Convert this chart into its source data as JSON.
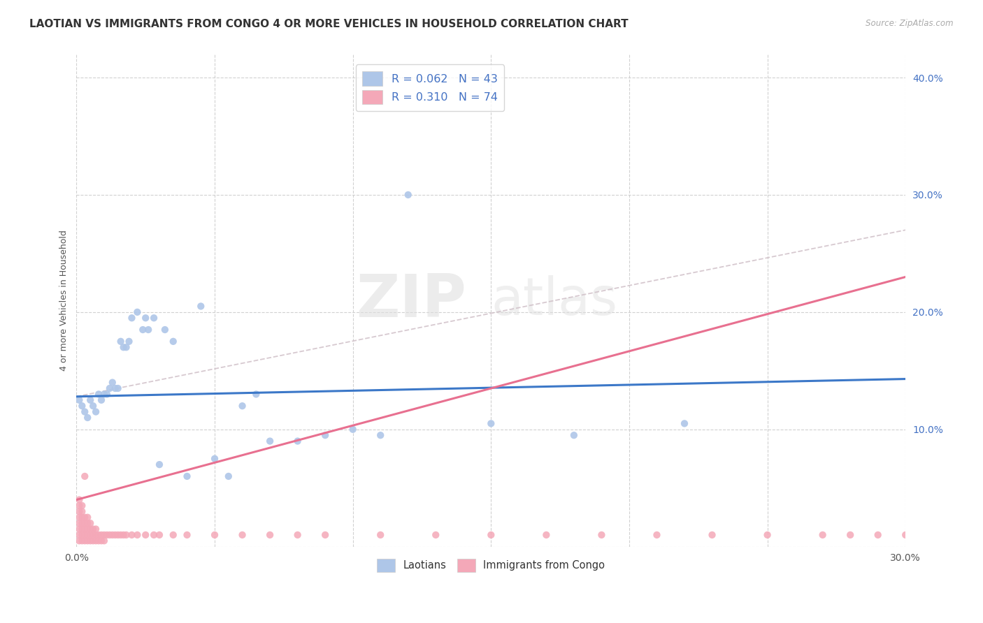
{
  "title": "LAOTIAN VS IMMIGRANTS FROM CONGO 4 OR MORE VEHICLES IN HOUSEHOLD CORRELATION CHART",
  "source": "Source: ZipAtlas.com",
  "ylabel": "4 or more Vehicles in Household",
  "xlim": [
    0.0,
    0.3
  ],
  "ylim": [
    0.0,
    0.42
  ],
  "xtick_positions": [
    0.0,
    0.05,
    0.1,
    0.15,
    0.2,
    0.25,
    0.3
  ],
  "xtick_labels": [
    "0.0%",
    "",
    "",
    "",
    "",
    "",
    "30.0%"
  ],
  "ytick_positions": [
    0.0,
    0.1,
    0.2,
    0.3,
    0.4
  ],
  "ytick_labels": [
    "",
    "10.0%",
    "20.0%",
    "30.0%",
    "40.0%"
  ],
  "laotian_R": 0.062,
  "laotian_N": 43,
  "congo_R": 0.31,
  "congo_N": 74,
  "laotian_color": "#aec6e8",
  "congo_color": "#f4a8b8",
  "laotian_line_color": "#3c78c8",
  "congo_line_color": "#e87090",
  "trend_line_color": "#d0c0c8",
  "background_color": "#ffffff",
  "watermark_zip": "ZIP",
  "watermark_atlas": "atlas",
  "laotian_scatter_x": [
    0.001,
    0.002,
    0.003,
    0.004,
    0.005,
    0.006,
    0.007,
    0.008,
    0.009,
    0.01,
    0.011,
    0.012,
    0.013,
    0.014,
    0.015,
    0.016,
    0.017,
    0.018,
    0.019,
    0.02,
    0.022,
    0.024,
    0.025,
    0.026,
    0.028,
    0.03,
    0.032,
    0.035,
    0.04,
    0.045,
    0.05,
    0.055,
    0.06,
    0.065,
    0.07,
    0.08,
    0.09,
    0.1,
    0.11,
    0.12,
    0.15,
    0.18,
    0.22
  ],
  "laotian_scatter_y": [
    0.125,
    0.12,
    0.115,
    0.11,
    0.125,
    0.12,
    0.115,
    0.13,
    0.125,
    0.13,
    0.13,
    0.135,
    0.14,
    0.135,
    0.135,
    0.175,
    0.17,
    0.17,
    0.175,
    0.195,
    0.2,
    0.185,
    0.195,
    0.185,
    0.195,
    0.07,
    0.185,
    0.175,
    0.06,
    0.205,
    0.075,
    0.06,
    0.12,
    0.13,
    0.09,
    0.09,
    0.095,
    0.1,
    0.095,
    0.3,
    0.105,
    0.095,
    0.105
  ],
  "congo_scatter_x": [
    0.001,
    0.001,
    0.001,
    0.001,
    0.001,
    0.001,
    0.001,
    0.001,
    0.002,
    0.002,
    0.002,
    0.002,
    0.002,
    0.002,
    0.002,
    0.003,
    0.003,
    0.003,
    0.003,
    0.003,
    0.003,
    0.004,
    0.004,
    0.004,
    0.004,
    0.004,
    0.005,
    0.005,
    0.005,
    0.005,
    0.006,
    0.006,
    0.006,
    0.007,
    0.007,
    0.007,
    0.008,
    0.008,
    0.009,
    0.009,
    0.01,
    0.01,
    0.011,
    0.012,
    0.013,
    0.014,
    0.015,
    0.016,
    0.017,
    0.018,
    0.02,
    0.022,
    0.025,
    0.028,
    0.03,
    0.035,
    0.04,
    0.05,
    0.06,
    0.07,
    0.08,
    0.09,
    0.11,
    0.13,
    0.15,
    0.17,
    0.19,
    0.21,
    0.23,
    0.25,
    0.27,
    0.28,
    0.29,
    0.3
  ],
  "congo_scatter_y": [
    0.005,
    0.01,
    0.015,
    0.02,
    0.025,
    0.03,
    0.035,
    0.04,
    0.005,
    0.01,
    0.015,
    0.02,
    0.025,
    0.03,
    0.035,
    0.005,
    0.01,
    0.015,
    0.02,
    0.025,
    0.06,
    0.005,
    0.01,
    0.015,
    0.02,
    0.025,
    0.005,
    0.01,
    0.015,
    0.02,
    0.005,
    0.01,
    0.015,
    0.005,
    0.01,
    0.015,
    0.005,
    0.01,
    0.005,
    0.01,
    0.005,
    0.01,
    0.01,
    0.01,
    0.01,
    0.01,
    0.01,
    0.01,
    0.01,
    0.01,
    0.01,
    0.01,
    0.01,
    0.01,
    0.01,
    0.01,
    0.01,
    0.01,
    0.01,
    0.01,
    0.01,
    0.01,
    0.01,
    0.01,
    0.01,
    0.01,
    0.01,
    0.01,
    0.01,
    0.01,
    0.01,
    0.01,
    0.01,
    0.01
  ],
  "lao_trend_x0": 0.0,
  "lao_trend_y0": 0.128,
  "lao_trend_x1": 0.3,
  "lao_trend_y1": 0.143,
  "con_trend_x0": 0.0,
  "con_trend_y0": 0.04,
  "con_trend_x1": 0.15,
  "con_trend_y1": 0.135,
  "gray_trend_x0": 0.0,
  "gray_trend_y0": 0.128,
  "gray_trend_x1": 0.3,
  "gray_trend_y1": 0.27,
  "legend_labels": [
    "Laotians",
    "Immigrants from Congo"
  ],
  "title_fontsize": 11,
  "label_fontsize": 9,
  "tick_fontsize": 10
}
